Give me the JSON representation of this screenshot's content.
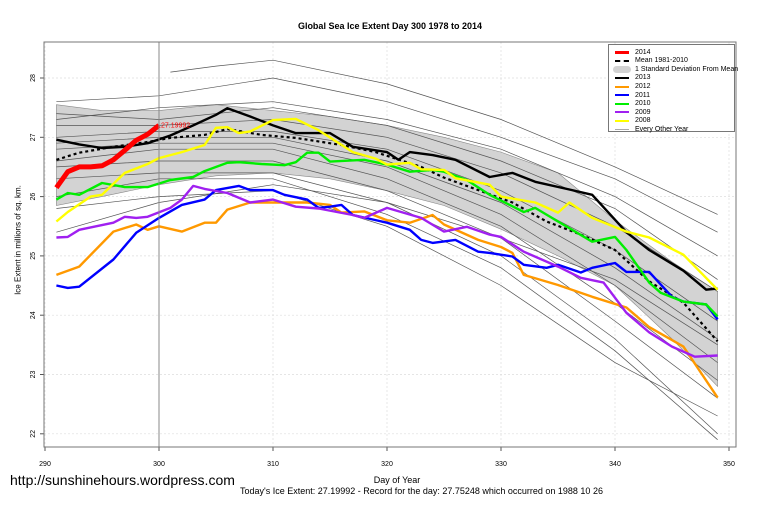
{
  "chart_data": {
    "type": "line",
    "title": "Global Sea Ice Extent Day 300 1978 to 2014",
    "xlabel": "Day of Year",
    "ylabel": "Ice Extent in millions of sq. km.",
    "xlim": [
      290,
      350
    ],
    "ylim": [
      22,
      28
    ],
    "x_ticks": [
      "290",
      "300",
      "310",
      "320",
      "330",
      "340",
      "350"
    ],
    "y_ticks": [
      "22",
      "23",
      "24",
      "25",
      "26",
      "27",
      "28"
    ],
    "grid": true,
    "legend_position": "top-right",
    "current_day_marker": 300,
    "annotation": "27.19992",
    "std_band": {
      "name": "1 Standard Deviation From Mean",
      "color": "#d3d3d3",
      "days": [
        291,
        295,
        300,
        305,
        310,
        315,
        320,
        325,
        330,
        335,
        340,
        345,
        349
      ],
      "upper": [
        27.55,
        27.45,
        27.45,
        27.55,
        27.45,
        27.35,
        27.2,
        27.0,
        26.75,
        26.4,
        25.6,
        24.9,
        24.4
      ],
      "lower": [
        25.85,
        26.0,
        26.2,
        26.35,
        26.4,
        26.3,
        26.1,
        25.85,
        25.45,
        25.0,
        24.5,
        23.6,
        22.8
      ]
    },
    "other_years": {
      "name": "Every Other Year",
      "color": "#555555",
      "lines": [
        {
          "days": [
            291,
            300,
            310,
            320,
            330,
            340,
            349
          ],
          "values": [
            27.6,
            27.7,
            28.0,
            27.6,
            27.0,
            26.3,
            25.4
          ]
        },
        {
          "days": [
            301,
            305,
            310,
            320,
            330,
            340,
            349
          ],
          "values": [
            28.1,
            28.2,
            28.3,
            27.9,
            27.3,
            26.5,
            25.7
          ]
        },
        {
          "days": [
            291,
            300,
            310,
            320,
            330,
            340,
            349
          ],
          "values": [
            27.3,
            27.5,
            27.6,
            27.3,
            26.8,
            26.0,
            25.0
          ]
        },
        {
          "days": [
            291,
            300,
            310,
            320,
            330,
            340,
            349
          ],
          "values": [
            27.2,
            27.2,
            27.3,
            27.0,
            26.4,
            25.5,
            24.4
          ]
        },
        {
          "days": [
            291,
            300,
            310,
            320,
            330,
            340,
            349
          ],
          "values": [
            27.0,
            27.1,
            27.1,
            26.8,
            26.1,
            25.1,
            23.9
          ]
        },
        {
          "days": [
            291,
            300,
            310,
            320,
            330,
            340,
            349
          ],
          "values": [
            26.9,
            27.0,
            27.0,
            26.6,
            25.9,
            24.8,
            23.6
          ]
        },
        {
          "days": [
            291,
            300,
            310,
            320,
            330,
            340,
            349
          ],
          "values": [
            26.8,
            26.9,
            26.9,
            26.5,
            25.7,
            24.5,
            23.2
          ]
        },
        {
          "days": [
            291,
            300,
            310,
            320,
            330,
            340,
            349
          ],
          "values": [
            26.6,
            26.8,
            26.8,
            26.3,
            25.5,
            24.2,
            22.9
          ]
        },
        {
          "days": [
            291,
            300,
            310,
            320,
            330,
            340,
            349
          ],
          "values": [
            26.5,
            26.6,
            26.6,
            26.1,
            25.3,
            23.9,
            22.6
          ]
        },
        {
          "days": [
            291,
            300,
            310,
            320,
            330,
            340,
            349
          ],
          "values": [
            26.3,
            26.4,
            26.4,
            25.9,
            25.0,
            23.6,
            22.0
          ]
        },
        {
          "days": [
            291,
            300,
            310,
            320,
            330,
            340,
            349
          ],
          "values": [
            26.0,
            26.3,
            26.3,
            25.7,
            24.8,
            23.4,
            21.9
          ]
        },
        {
          "days": [
            291,
            300,
            310,
            320,
            330,
            340,
            349
          ],
          "values": [
            25.8,
            26.0,
            26.1,
            25.5,
            24.5,
            23.2,
            22.3
          ]
        },
        {
          "days": [
            291,
            300,
            310,
            320,
            330,
            340,
            349
          ],
          "values": [
            25.4,
            25.9,
            26.2,
            25.9,
            25.3,
            24.6,
            23.5
          ]
        },
        {
          "days": [
            291,
            300,
            310,
            320,
            330,
            340,
            349
          ],
          "values": [
            27.4,
            27.3,
            27.5,
            27.2,
            26.6,
            25.8,
            24.6
          ]
        }
      ]
    },
    "mean": {
      "name": "Mean 1981-2010",
      "color": "#000000",
      "days": [
        291,
        293,
        296,
        299,
        301,
        304,
        306,
        309,
        312,
        316,
        319,
        323,
        325,
        328,
        331,
        334,
        337,
        340,
        343,
        346,
        349
      ],
      "values": [
        26.62,
        26.74,
        26.84,
        26.92,
        26.99,
        27.04,
        27.14,
        27.04,
        26.99,
        26.87,
        26.75,
        26.5,
        26.32,
        26.11,
        25.9,
        25.58,
        25.36,
        25.1,
        24.57,
        24.21,
        23.56
      ]
    },
    "series": [
      {
        "name": "2013",
        "color": "#000000",
        "days": [
          291,
          293,
          295,
          297,
          299,
          301,
          303,
          305,
          306,
          308,
          310,
          312,
          315,
          317,
          320,
          321,
          322,
          324,
          326,
          329,
          331,
          333,
          336,
          338,
          341,
          343,
          346,
          348,
          349
        ],
        "values": [
          26.96,
          26.88,
          26.82,
          26.84,
          26.9,
          27.03,
          27.2,
          27.38,
          27.49,
          27.35,
          27.2,
          27.07,
          27.07,
          26.84,
          26.75,
          26.62,
          26.75,
          26.7,
          26.62,
          26.33,
          26.4,
          26.25,
          26.12,
          26.03,
          25.4,
          25.1,
          24.75,
          24.43,
          24.45
        ]
      },
      {
        "name": "2012",
        "color": "#ff9900",
        "days": [
          291,
          293,
          296,
          298,
          299,
          300,
          302,
          304,
          305,
          306,
          308,
          313,
          315,
          316,
          318,
          320,
          322,
          324,
          325,
          328,
          330,
          331,
          332,
          335,
          338,
          341,
          343,
          346,
          349
        ],
        "values": [
          24.68,
          24.82,
          25.41,
          25.53,
          25.44,
          25.5,
          25.41,
          25.56,
          25.56,
          25.78,
          25.9,
          25.9,
          25.86,
          25.73,
          25.75,
          25.6,
          25.56,
          25.69,
          25.53,
          25.27,
          25.15,
          25.05,
          24.68,
          24.51,
          24.31,
          24.13,
          23.8,
          23.47,
          22.61
        ]
      },
      {
        "name": "2011",
        "color": "#0000ff",
        "days": [
          291,
          292,
          293,
          296,
          298,
          300,
          302,
          304,
          305,
          307,
          308,
          310,
          311,
          313,
          314,
          315,
          316,
          317,
          320,
          322,
          323,
          324,
          326,
          328,
          329,
          331,
          332,
          334,
          335,
          337,
          338,
          340,
          341,
          343,
          345,
          346,
          348,
          349
        ],
        "values": [
          24.5,
          24.46,
          24.48,
          24.94,
          25.39,
          25.64,
          25.86,
          25.95,
          26.11,
          26.18,
          26.11,
          26.11,
          26.03,
          25.95,
          25.81,
          25.83,
          25.86,
          25.69,
          25.56,
          25.44,
          25.27,
          25.22,
          25.27,
          25.07,
          25.05,
          24.99,
          24.85,
          24.8,
          24.85,
          24.72,
          24.8,
          24.88,
          24.73,
          24.73,
          24.31,
          24.23,
          24.18,
          23.93
        ]
      },
      {
        "name": "2010",
        "color": "#00ee00",
        "days": [
          291,
          292,
          293,
          295,
          297,
          299,
          301,
          303,
          304,
          306,
          307,
          309,
          311,
          312,
          313,
          314,
          315,
          318,
          320,
          322,
          324,
          325,
          327,
          329,
          332,
          333,
          335,
          338,
          340,
          341,
          343,
          344,
          346,
          348,
          349
        ],
        "values": [
          25.95,
          26.06,
          26.03,
          26.23,
          26.16,
          26.16,
          26.28,
          26.33,
          26.43,
          26.57,
          26.58,
          26.55,
          26.53,
          26.58,
          26.74,
          26.74,
          26.59,
          26.62,
          26.54,
          26.42,
          26.45,
          26.42,
          26.28,
          26.03,
          25.74,
          25.81,
          25.58,
          25.24,
          25.32,
          25.1,
          24.55,
          24.38,
          24.23,
          24.18,
          23.98
        ]
      },
      {
        "name": "2009",
        "color": "#a020f0",
        "days": [
          291,
          292,
          293,
          296,
          297,
          298,
          299,
          301,
          302,
          303,
          304,
          306,
          308,
          310,
          312,
          314,
          317,
          318,
          320,
          323,
          325,
          327,
          329,
          330,
          332,
          335,
          337,
          339,
          341,
          343,
          345,
          347,
          349
        ],
        "values": [
          25.31,
          25.32,
          25.44,
          25.56,
          25.66,
          25.64,
          25.66,
          25.81,
          25.95,
          26.18,
          26.13,
          26.06,
          25.9,
          25.95,
          25.83,
          25.8,
          25.69,
          25.64,
          25.81,
          25.64,
          25.41,
          25.49,
          25.36,
          25.32,
          25.07,
          24.82,
          24.63,
          24.55,
          24.04,
          23.71,
          23.47,
          23.3,
          23.32
        ]
      },
      {
        "name": "2008",
        "color": "#ffff00",
        "days": [
          291,
          292,
          294,
          295,
          297,
          299,
          300,
          302,
          304,
          305,
          306,
          307,
          308,
          310,
          312,
          314,
          317,
          319,
          320,
          322,
          323,
          325,
          326,
          329,
          330,
          333,
          335,
          336,
          338,
          341,
          343,
          346,
          349
        ],
        "values": [
          25.58,
          25.74,
          26.0,
          26.03,
          26.4,
          26.55,
          26.65,
          26.75,
          26.87,
          27.16,
          27.17,
          27.07,
          27.1,
          27.29,
          27.31,
          27.12,
          26.75,
          26.64,
          26.54,
          26.57,
          26.46,
          26.45,
          26.31,
          26.2,
          26.0,
          25.9,
          25.73,
          25.9,
          25.64,
          25.41,
          25.31,
          25.02,
          24.43
        ]
      },
      {
        "name": "2014",
        "color": "#ff0000",
        "days": [
          291,
          292,
          293,
          294,
          295,
          296,
          297,
          298,
          299,
          300
        ],
        "values": [
          26.15,
          26.42,
          26.5,
          26.5,
          26.52,
          26.62,
          26.78,
          26.95,
          27.05,
          27.2
        ]
      }
    ],
    "legend": [
      {
        "label": "2014",
        "color": "#ff0000",
        "style": "thick"
      },
      {
        "label": "Mean 1981-2010",
        "color": "#000000",
        "style": "dashed"
      },
      {
        "label": "1 Standard Deviation From Mean",
        "color": "#d3d3d3",
        "style": "band"
      },
      {
        "label": "2013",
        "color": "#000000",
        "style": "solid"
      },
      {
        "label": "2012",
        "color": "#ff9900",
        "style": "solid"
      },
      {
        "label": "2011",
        "color": "#0000ff",
        "style": "solid"
      },
      {
        "label": "2010",
        "color": "#00ee00",
        "style": "solid"
      },
      {
        "label": "2009",
        "color": "#a020f0",
        "style": "solid"
      },
      {
        "label": "2008",
        "color": "#ffff00",
        "style": "solid"
      },
      {
        "label": "Every Other Year",
        "color": "#aaaaaa",
        "style": "thin"
      }
    ]
  },
  "footer": {
    "website": "http://sunshinehours.wordpress.com",
    "summary": "Today's Ice Extent: 27.19992  - Record for the day: 27.75248 which occurred on 1988 10 26"
  }
}
